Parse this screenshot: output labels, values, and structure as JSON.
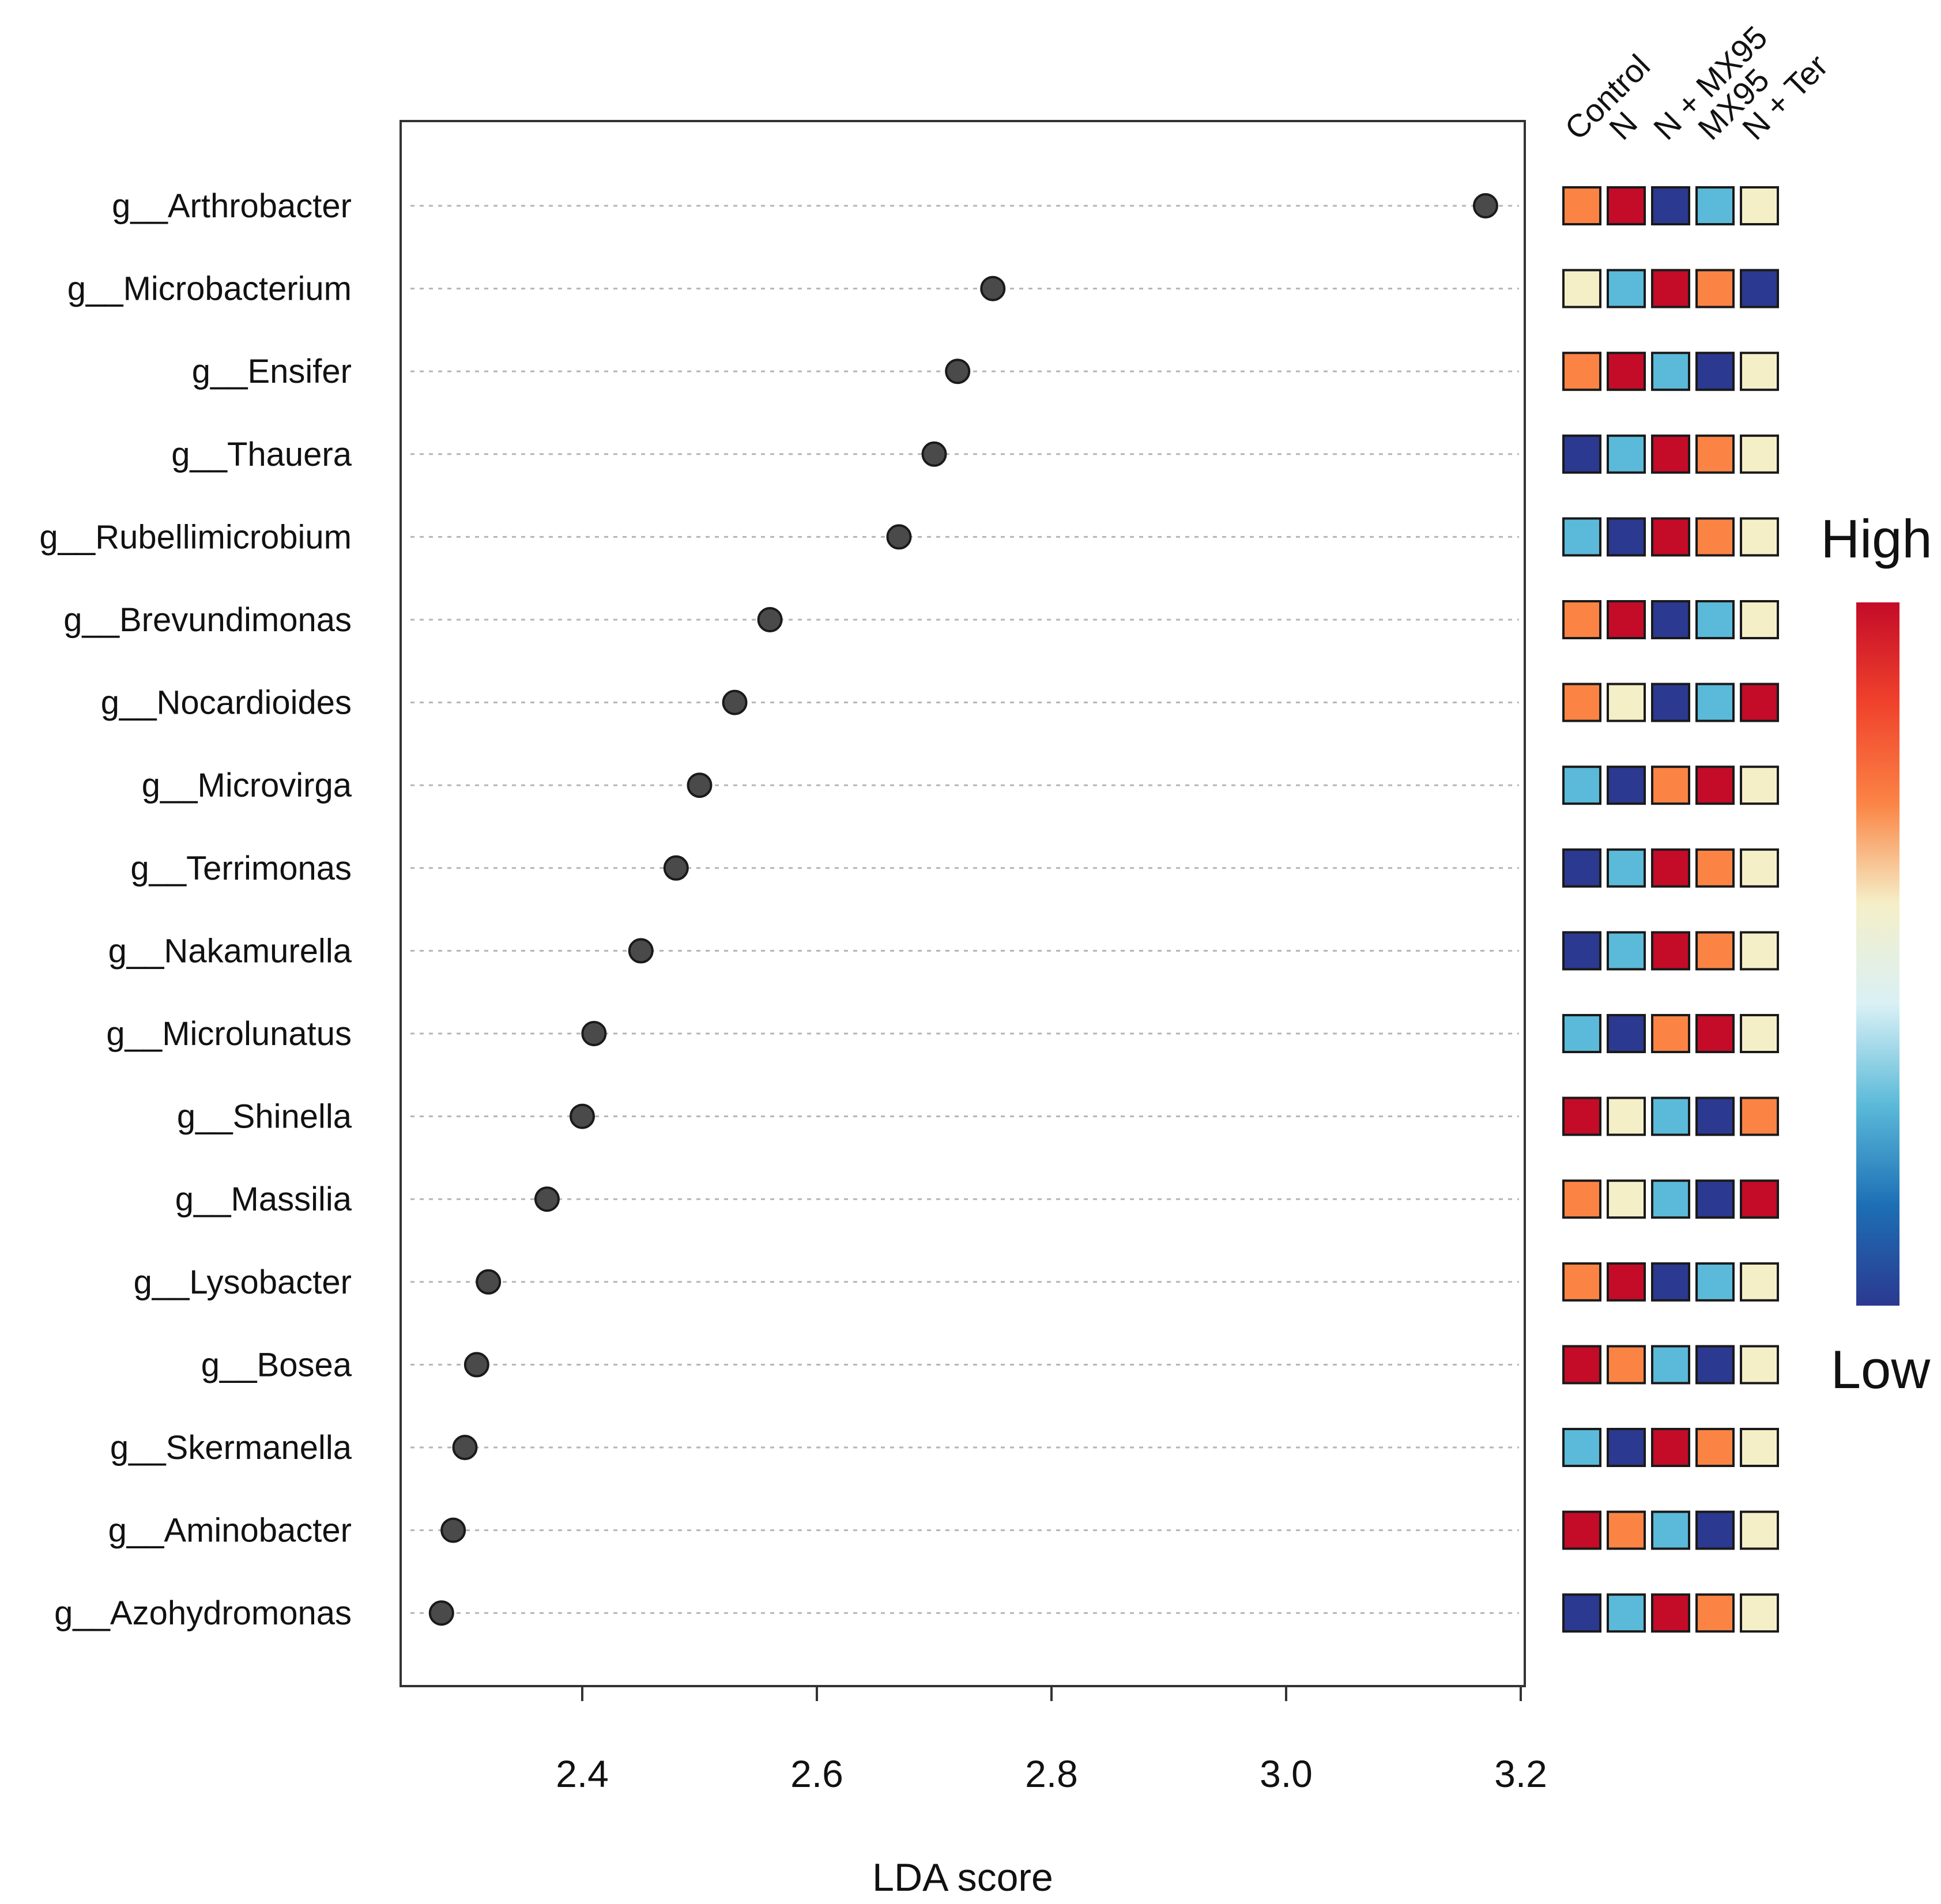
{
  "chart_data": {
    "type": "scatter",
    "xlabel": "LDA score",
    "xlim": [
      2.25,
      3.2
    ],
    "x_ticks": [
      2.4,
      2.6,
      2.8,
      3.0,
      3.2
    ],
    "x_tick_labels": [
      "2.4",
      "2.6",
      "2.8",
      "3.0",
      "3.2"
    ],
    "gridlines": "horizontal dotted per taxon",
    "taxa": [
      {
        "name": "g__Arthrobacter",
        "lda": 3.17
      },
      {
        "name": "g__Microbacterium",
        "lda": 2.75
      },
      {
        "name": "g__Ensifer",
        "lda": 2.72
      },
      {
        "name": "g__Thauera",
        "lda": 2.7
      },
      {
        "name": "g__Rubellimicrobium",
        "lda": 2.67
      },
      {
        "name": "g__Brevundimonas",
        "lda": 2.56
      },
      {
        "name": "g__Nocardioides",
        "lda": 2.53
      },
      {
        "name": "g__Microvirga",
        "lda": 2.5
      },
      {
        "name": "g__Terrimonas",
        "lda": 2.48
      },
      {
        "name": "g__Nakamurella",
        "lda": 2.45
      },
      {
        "name": "g__Microlunatus",
        "lda": 2.41
      },
      {
        "name": "g__Shinella",
        "lda": 2.4
      },
      {
        "name": "g__Massilia",
        "lda": 2.37
      },
      {
        "name": "g__Lysobacter",
        "lda": 2.32
      },
      {
        "name": "g__Bosea",
        "lda": 2.31
      },
      {
        "name": "g__Skermanella",
        "lda": 2.3
      },
      {
        "name": "g__Aminobacter",
        "lda": 2.29
      },
      {
        "name": "g__Azohydromonas",
        "lda": 2.28
      }
    ],
    "heatmap": {
      "groups": [
        "Control",
        "N",
        "N + MX95",
        "MX95",
        "N + Ter"
      ],
      "levels_note": "relative abundance rank per taxon, 1 = Low ... 5 = High",
      "level_colors": {
        "1": "#2b3990",
        "2": "#5bbad9",
        "3": "#f5efc8",
        "4": "#fb8445",
        "5": "#c40b28"
      },
      "rows": [
        [
          4,
          5,
          1,
          2,
          3
        ],
        [
          3,
          2,
          5,
          4,
          1
        ],
        [
          4,
          5,
          2,
          1,
          3
        ],
        [
          1,
          2,
          5,
          4,
          3
        ],
        [
          2,
          1,
          5,
          4,
          3
        ],
        [
          4,
          5,
          1,
          2,
          3
        ],
        [
          4,
          3,
          1,
          2,
          5
        ],
        [
          2,
          1,
          4,
          5,
          3
        ],
        [
          1,
          2,
          5,
          4,
          3
        ],
        [
          1,
          2,
          5,
          4,
          3
        ],
        [
          2,
          1,
          4,
          5,
          3
        ],
        [
          5,
          3,
          2,
          1,
          4
        ],
        [
          4,
          3,
          2,
          1,
          5
        ],
        [
          4,
          5,
          1,
          2,
          3
        ],
        [
          5,
          4,
          2,
          1,
          3
        ],
        [
          2,
          1,
          5,
          4,
          3
        ],
        [
          5,
          4,
          2,
          1,
          3
        ],
        [
          1,
          2,
          5,
          4,
          3
        ]
      ]
    },
    "legend": {
      "high_label": "High",
      "low_label": "Low",
      "gradient_colors": [
        "#c40b28",
        "#f0422c",
        "#fb8445",
        "#f5efc8",
        "#d9f0f5",
        "#5bbad9",
        "#1d6fb5",
        "#2b3990"
      ],
      "placement": "right"
    }
  }
}
